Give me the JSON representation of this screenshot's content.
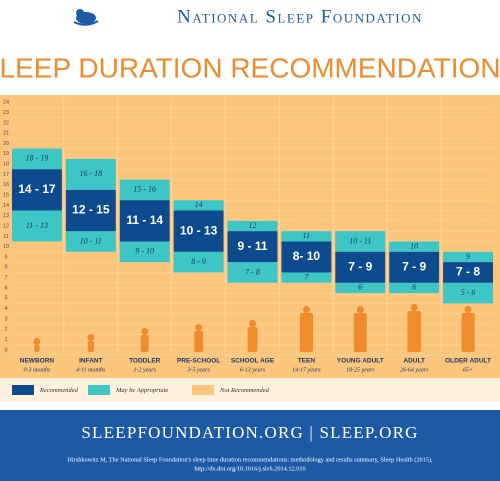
{
  "header": {
    "organization": "National Sleep Foundation"
  },
  "chart_data": {
    "type": "range",
    "title": "SLEEP DURATION RECOMMENDATIONS",
    "ylim": [
      0,
      25
    ],
    "yticks": [
      0,
      1,
      2,
      3,
      4,
      5,
      6,
      7,
      8,
      9,
      10,
      11,
      12,
      13,
      14,
      15,
      16,
      17,
      18,
      19,
      20,
      21,
      22,
      23,
      24
    ],
    "background_color": "#fbc57c",
    "recommended_color": "#0d4a8e",
    "appropriate_color": "#3ec5c6",
    "groups": [
      {
        "name": "NEWBORN",
        "age": "0-3 months",
        "recommended": {
          "low": 14,
          "high": 17,
          "label": "14 - 17"
        },
        "appropriate_low": {
          "low": 11,
          "high": 13,
          "label": "11 - 13"
        },
        "appropriate_high": {
          "low": 18,
          "high": 19,
          "label": "18 - 19"
        }
      },
      {
        "name": "INFANT",
        "age": "4-11 months",
        "recommended": {
          "low": 12,
          "high": 15,
          "label": "12 - 15"
        },
        "appropriate_low": {
          "low": 10,
          "high": 11,
          "label": "10 - 11"
        },
        "appropriate_high": {
          "low": 16,
          "high": 18,
          "label": "16 - 18"
        }
      },
      {
        "name": "TODDLER",
        "age": "1-2 years",
        "recommended": {
          "low": 11,
          "high": 14,
          "label": "11 - 14"
        },
        "appropriate_low": {
          "low": 9,
          "high": 10,
          "label": "9 - 10"
        },
        "appropriate_high": {
          "low": 15,
          "high": 16,
          "label": "15 - 16"
        }
      },
      {
        "name": "PRE-SCHOOL",
        "age": "3-5 years",
        "recommended": {
          "low": 10,
          "high": 13,
          "label": "10 - 13"
        },
        "appropriate_low": {
          "low": 8,
          "high": 9,
          "label": "8 - 9"
        },
        "appropriate_high": {
          "low": 14,
          "high": 14,
          "label": "14"
        }
      },
      {
        "name": "SCHOOL AGE",
        "age": "6-13 years",
        "recommended": {
          "low": 9,
          "high": 11,
          "label": "9 - 11"
        },
        "appropriate_low": {
          "low": 7,
          "high": 8,
          "label": "7 - 8"
        },
        "appropriate_high": {
          "low": 12,
          "high": 12,
          "label": "12"
        }
      },
      {
        "name": "TEEN",
        "age": "14-17 years",
        "recommended": {
          "low": 8,
          "high": 10,
          "label": "8- 10"
        },
        "appropriate_low": {
          "low": 7,
          "high": 7,
          "label": "7"
        },
        "appropriate_high": {
          "low": 11,
          "high": 11,
          "label": "11"
        }
      },
      {
        "name": "YOUNG ADULT",
        "age": "18-25 years",
        "recommended": {
          "low": 7,
          "high": 9,
          "label": "7 - 9"
        },
        "appropriate_low": {
          "low": 6,
          "high": 6,
          "label": "6"
        },
        "appropriate_high": {
          "low": 10,
          "high": 11,
          "label": "10 - 11"
        }
      },
      {
        "name": "ADULT",
        "age": "26-64 years",
        "recommended": {
          "low": 7,
          "high": 9,
          "label": "7 - 9"
        },
        "appropriate_low": {
          "low": 6,
          "high": 6,
          "label": "6"
        },
        "appropriate_high": {
          "low": 10,
          "high": 10,
          "label": "10"
        }
      },
      {
        "name": "OLDER ADULT",
        "age": "65+",
        "recommended": {
          "low": 7,
          "high": 8,
          "label": "7 - 8"
        },
        "appropriate_low": {
          "low": 5,
          "high": 6,
          "label": "5 - 6"
        },
        "appropriate_high": {
          "low": 9,
          "high": 9,
          "label": "9"
        }
      }
    ],
    "legend": [
      {
        "label": "Recommended",
        "color": "#0d4a8e"
      },
      {
        "label": "May be Appropriate",
        "color": "#3ec5c6"
      },
      {
        "label": "Not Recommended",
        "color": "#fbc57c"
      }
    ]
  },
  "footer": {
    "links": "SLEEPFOUNDATION.ORG | SLEEP.ORG",
    "citation": [
      "Hirshkowitz M, The National Sleep Foundation's sleep time duration recommendations: methodology and results summary, Sleep Health (2015),",
      "http://dx.doi.org/10.1016/j.sleh.2014.12.010"
    ]
  }
}
